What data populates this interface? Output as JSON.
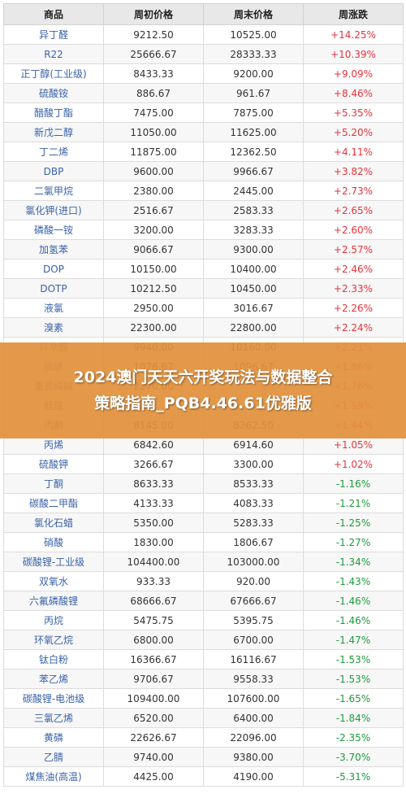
{
  "table": {
    "headers": [
      "商品",
      "周初价格",
      "周末价格",
      "周涨跌"
    ],
    "rows": [
      {
        "name": "异丁醛",
        "start": "9212.50",
        "end": "10525.00",
        "change": "+14.25%",
        "dir": "up"
      },
      {
        "name": "R22",
        "start": "25666.67",
        "end": "28333.33",
        "change": "+10.39%",
        "dir": "up"
      },
      {
        "name": "正丁醇(工业级)",
        "start": "8433.33",
        "end": "9200.00",
        "change": "+9.09%",
        "dir": "up"
      },
      {
        "name": "硫酸铵",
        "start": "886.67",
        "end": "961.67",
        "change": "+8.46%",
        "dir": "up"
      },
      {
        "name": "醋酸丁酯",
        "start": "7475.00",
        "end": "7875.00",
        "change": "+5.35%",
        "dir": "up"
      },
      {
        "name": "新戊二醇",
        "start": "11050.00",
        "end": "11625.00",
        "change": "+5.20%",
        "dir": "up"
      },
      {
        "name": "丁二烯",
        "start": "11875.00",
        "end": "12362.50",
        "change": "+4.11%",
        "dir": "up"
      },
      {
        "name": "DBP",
        "start": "9600.00",
        "end": "9966.67",
        "change": "+3.82%",
        "dir": "up"
      },
      {
        "name": "二氯甲烷",
        "start": "2380.00",
        "end": "2445.00",
        "change": "+2.73%",
        "dir": "up"
      },
      {
        "name": "氯化钾(进口)",
        "start": "2516.67",
        "end": "2583.33",
        "change": "+2.65%",
        "dir": "up"
      },
      {
        "name": "磷酸一铵",
        "start": "3200.00",
        "end": "3283.33",
        "change": "+2.60%",
        "dir": "up"
      },
      {
        "name": "加氢苯",
        "start": "9066.67",
        "end": "9300.00",
        "change": "+2.57%",
        "dir": "up"
      },
      {
        "name": "DOP",
        "start": "10150.00",
        "end": "10400.00",
        "change": "+2.46%",
        "dir": "up"
      },
      {
        "name": "DOTP",
        "start": "10212.50",
        "end": "10450.00",
        "change": "+2.33%",
        "dir": "up"
      },
      {
        "name": "液氯",
        "start": "2950.00",
        "end": "3016.67",
        "change": "+2.26%",
        "dir": "up"
      },
      {
        "name": "溴素",
        "start": "22300.00",
        "end": "22800.00",
        "change": "+2.24%",
        "dir": "up"
      },
      {
        "name": "异辛醇",
        "start": "9940.00",
        "end": "10160.00",
        "change": "+2.21%",
        "dir": "up"
      },
      {
        "name": "硫磺",
        "start": "1076.67",
        "end": "1096.67",
        "change": "+1.86%",
        "dir": "up"
      },
      {
        "name": "重质纯碱",
        "start": "2270.00",
        "end": "",
        "change": "+1.76%",
        "dir": "up"
      },
      {
        "name": "醋酸",
        "start": "",
        "end": "",
        "change": "+1.59%",
        "dir": "up"
      },
      {
        "name": "丙酮",
        "start": "8145.00",
        "end": "8262.50",
        "change": "+1.44%",
        "dir": "up"
      },
      {
        "name": "丙烯",
        "start": "6842.60",
        "end": "6914.60",
        "change": "+1.05%",
        "dir": "up"
      },
      {
        "name": "硫酸钾",
        "start": "3266.67",
        "end": "3300.00",
        "change": "+1.02%",
        "dir": "up"
      },
      {
        "name": "丁酮",
        "start": "8633.33",
        "end": "8533.33",
        "change": "-1.16%",
        "dir": "down"
      },
      {
        "name": "碳酸二甲酯",
        "start": "4133.33",
        "end": "4083.33",
        "change": "-1.21%",
        "dir": "down"
      },
      {
        "name": "氯化石蜡",
        "start": "5350.00",
        "end": "5283.33",
        "change": "-1.25%",
        "dir": "down"
      },
      {
        "name": "硝酸",
        "start": "1830.00",
        "end": "1806.67",
        "change": "-1.27%",
        "dir": "down"
      },
      {
        "name": "碳酸锂-工业级",
        "start": "104400.00",
        "end": "103000.00",
        "change": "-1.34%",
        "dir": "down"
      },
      {
        "name": "双氧水",
        "start": "933.33",
        "end": "920.00",
        "change": "-1.43%",
        "dir": "down"
      },
      {
        "name": "六氟磷酸锂",
        "start": "68666.67",
        "end": "67666.67",
        "change": "-1.46%",
        "dir": "down"
      },
      {
        "name": "丙烷",
        "start": "5475.75",
        "end": "5395.75",
        "change": "-1.46%",
        "dir": "down"
      },
      {
        "name": "环氧乙烷",
        "start": "6800.00",
        "end": "6700.00",
        "change": "-1.47%",
        "dir": "down"
      },
      {
        "name": "钛白粉",
        "start": "16366.67",
        "end": "16116.67",
        "change": "-1.53%",
        "dir": "down"
      },
      {
        "name": "苯乙烯",
        "start": "9706.67",
        "end": "9558.33",
        "change": "-1.53%",
        "dir": "down"
      },
      {
        "name": "碳酸锂-电池级",
        "start": "109400.00",
        "end": "107600.00",
        "change": "-1.65%",
        "dir": "down"
      },
      {
        "name": "三氯乙烯",
        "start": "6520.00",
        "end": "6400.00",
        "change": "-1.84%",
        "dir": "down"
      },
      {
        "name": "黄磷",
        "start": "22626.67",
        "end": "22096.00",
        "change": "-2.35%",
        "dir": "down"
      },
      {
        "name": "乙腈",
        "start": "9740.00",
        "end": "9380.00",
        "change": "-3.70%",
        "dir": "down"
      },
      {
        "name": "煤焦油(高温)",
        "start": "4425.00",
        "end": "4190.00",
        "change": "-5.31%",
        "dir": "down"
      }
    ]
  },
  "banner": {
    "line1": "2024澳门天天六开奖玩法与数据整合",
    "line2": "策略指南_PQB4.46.61优雅版"
  }
}
